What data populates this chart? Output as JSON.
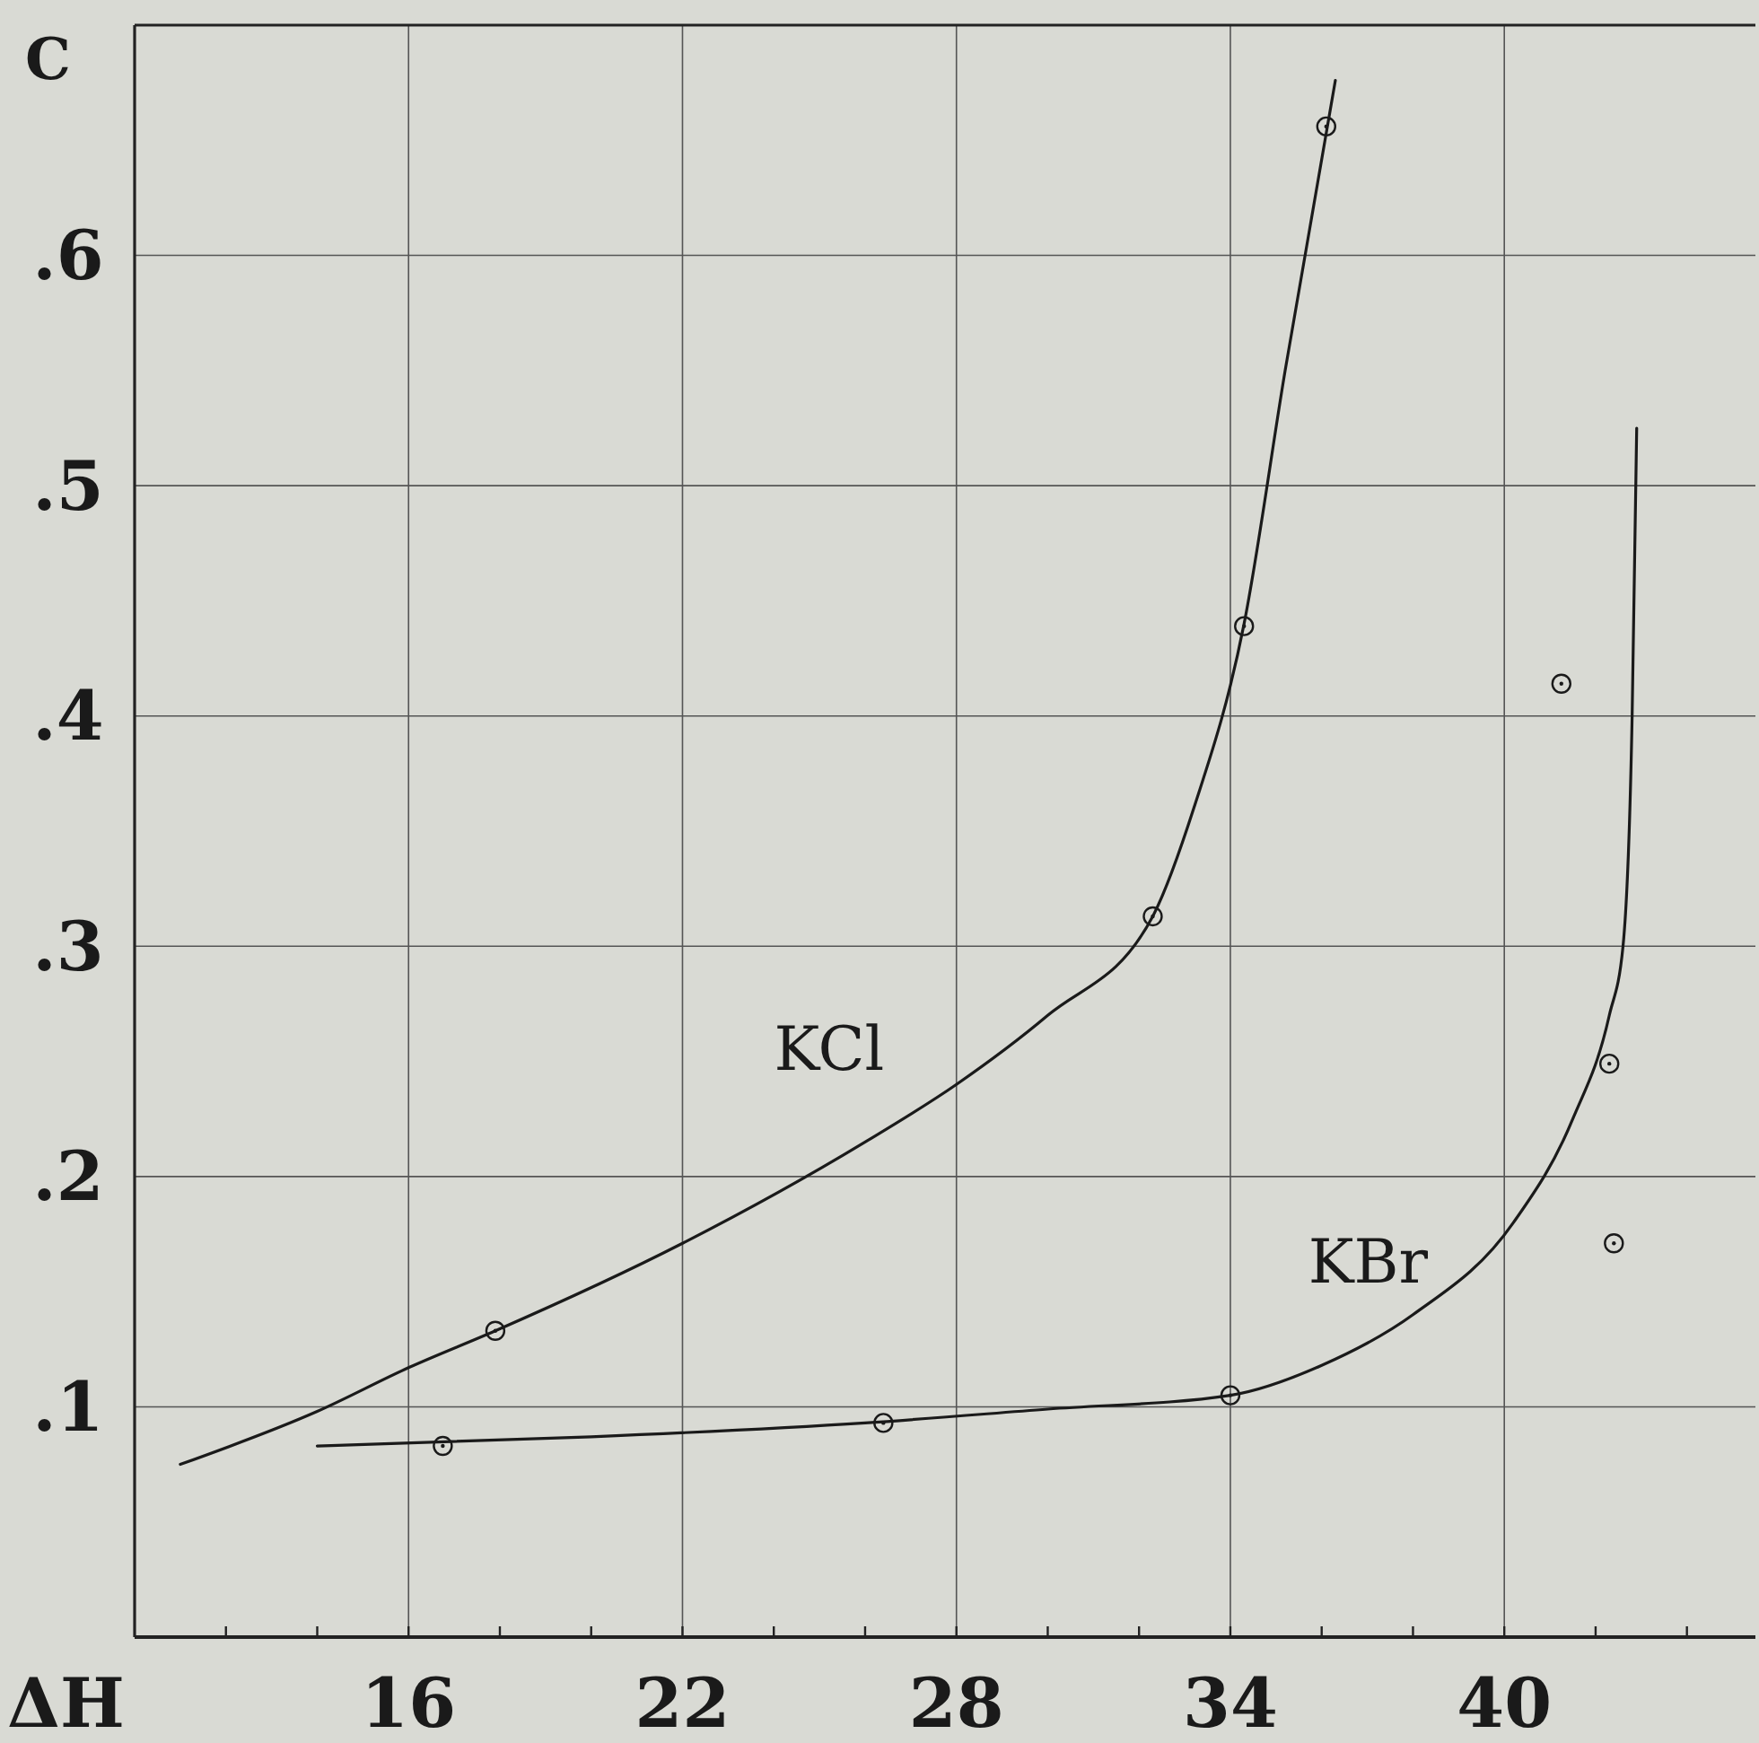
{
  "chart_data": {
    "type": "line",
    "xlabel": "ΔH",
    "ylabel": "C",
    "xlim": [
      10,
      45.5
    ],
    "ylim": [
      0,
      0.7
    ],
    "xticks": [
      {
        "value": 12,
        "label": null
      },
      {
        "value": 14,
        "label": null
      },
      16,
      {
        "value": 18,
        "label": null
      },
      {
        "value": 20,
        "label": null
      },
      22,
      {
        "value": 24,
        "label": null
      },
      {
        "value": 26,
        "label": null
      },
      28,
      {
        "value": 30,
        "label": null
      },
      {
        "value": 32,
        "label": null
      },
      34,
      {
        "value": 36,
        "label": null
      },
      {
        "value": 38,
        "label": null
      },
      40,
      {
        "value": 42,
        "label": null
      },
      {
        "value": 44,
        "label": null
      }
    ],
    "yticks": [
      {
        "value": 0.1,
        "label": ".1"
      },
      {
        "value": 0.2,
        "label": ".2"
      },
      {
        "value": 0.3,
        "label": ".3"
      },
      {
        "value": 0.4,
        "label": ".4"
      },
      {
        "value": 0.5,
        "label": ".5"
      },
      {
        "value": 0.6,
        "label": ".6"
      }
    ],
    "grid": true,
    "legend": false,
    "series": [
      {
        "name": "KCl",
        "color": "#1a1a1a",
        "marker": "none",
        "x": [
          11,
          14,
          16,
          17.9,
          22,
          26,
          28,
          30,
          32.3,
          33.2,
          34.3,
          35.2,
          36.3
        ],
        "values": [
          0.075,
          0.098,
          0.117,
          0.133,
          0.171,
          0.215,
          0.24,
          0.27,
          0.313,
          0.36,
          0.44,
          0.55,
          0.676
        ]
      },
      {
        "name": "KBr",
        "color": "#1a1a1a",
        "marker": "none",
        "x": [
          14,
          20,
          26,
          30,
          34,
          36,
          38,
          40.2,
          41.5,
          42.3,
          42.6,
          42.8,
          42.9
        ],
        "values": [
          0.083,
          0.087,
          0.093,
          0.099,
          0.105,
          0.118,
          0.14,
          0.18,
          0.225,
          0.27,
          0.3,
          0.4,
          0.525
        ]
      },
      {
        "type": "scatter",
        "color": "#1a1a1a",
        "marker": "circle",
        "x": [
          17.9,
          32.3,
          34.3,
          36.1
        ],
        "values": [
          0.133,
          0.313,
          0.439,
          0.656
        ]
      },
      {
        "type": "scatter",
        "color": "#1a1a1a",
        "marker": "circle",
        "x": [
          16.75,
          26.4,
          34.0,
          41.25,
          42.3,
          42.4
        ],
        "values": [
          0.083,
          0.093,
          0.105,
          0.414,
          0.249,
          0.171
        ]
      }
    ]
  }
}
